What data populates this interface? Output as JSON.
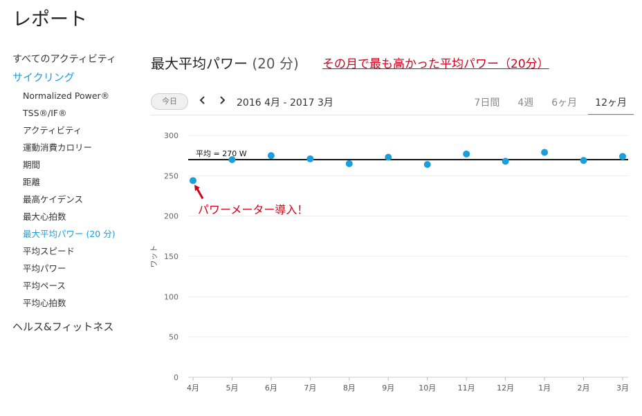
{
  "page": {
    "title": "レポート"
  },
  "sidebar": {
    "top_item": "すべてのアクティビティ",
    "active_category": "サイクリング",
    "items": [
      {
        "label": "Normalized Power®",
        "active": false
      },
      {
        "label": "TSS®/IF®",
        "active": false
      },
      {
        "label": "アクティビティ",
        "active": false
      },
      {
        "label": "運動消費カロリー",
        "active": false
      },
      {
        "label": "期間",
        "active": false
      },
      {
        "label": "距離",
        "active": false
      },
      {
        "label": "最高ケイデンス",
        "active": false
      },
      {
        "label": "最大心拍数",
        "active": false
      },
      {
        "label": "最大平均パワー (20 分)",
        "active": true
      },
      {
        "label": "平均スピード",
        "active": false
      },
      {
        "label": "平均パワー",
        "active": false
      },
      {
        "label": "平均ペース",
        "active": false
      },
      {
        "label": "平均心拍数",
        "active": false
      }
    ],
    "bottom_category": "ヘルス&フィットネス"
  },
  "report": {
    "title": "最大平均パワー",
    "unit": "(20 分)",
    "annotation": "その月で最も高かった平均パワー（20分）"
  },
  "toolbar": {
    "today_label": "今日",
    "prev_icon": "chevron-left-icon",
    "next_icon": "chevron-right-icon",
    "date_range": "2016 4月 - 2017 3月",
    "tabs": [
      {
        "label": "7日間",
        "active": false
      },
      {
        "label": "4週",
        "active": false
      },
      {
        "label": "6ヶ月",
        "active": false
      },
      {
        "label": "12ヶ月",
        "active": true
      }
    ]
  },
  "colors": {
    "accent": "#1a9fdb",
    "annotation": "#d0021b",
    "point": "#1a9fdb",
    "avg_line": "#111111"
  },
  "chart_data": {
    "type": "scatter",
    "categories": [
      "4月",
      "5月",
      "6月",
      "7月",
      "8月",
      "9月",
      "10月",
      "11月",
      "12月",
      "1月",
      "2月",
      "3月"
    ],
    "values": [
      244,
      270,
      275,
      271,
      265,
      273,
      264,
      277,
      268,
      279,
      269,
      274
    ],
    "ylabel": "ワット",
    "ylim": [
      0,
      300
    ],
    "yticks": [
      0,
      50,
      100,
      150,
      200,
      250,
      300
    ],
    "grid": true,
    "average": {
      "value": 270,
      "label": "平均 = 270 W"
    },
    "annotation": "パワーメーター導入！"
  }
}
